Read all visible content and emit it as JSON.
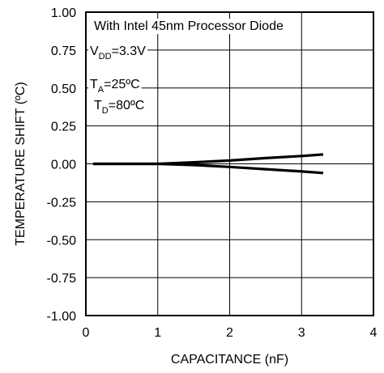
{
  "chart_data": {
    "type": "line",
    "title": "",
    "xlabel": "CAPACITANCE (nF)",
    "ylabel": "TEMPERATURE SHIFT (ºC)",
    "xlim": [
      0,
      4
    ],
    "ylim": [
      -1.0,
      1.0
    ],
    "x_ticks": [
      "0",
      "1",
      "2",
      "3",
      "4"
    ],
    "x_tick_values": [
      0,
      1,
      2,
      3,
      4
    ],
    "y_ticks": [
      "1.00",
      "0.75",
      "0.50",
      "0.25",
      "0.00",
      "-0.25",
      "-0.50",
      "-0.75",
      "-1.00"
    ],
    "y_tick_values": [
      1.0,
      0.75,
      0.5,
      0.25,
      0.0,
      -0.25,
      -0.5,
      -0.75,
      -1.0
    ],
    "grid": true,
    "series": [
      {
        "x": [
          0.1,
          1.0,
          1.5,
          2.0,
          2.5,
          3.0,
          3.3
        ],
        "values": [
          0.0,
          0.0,
          0.01,
          0.022,
          0.038,
          0.052,
          0.062
        ]
      },
      {
        "x": [
          0.1,
          1.0,
          1.5,
          2.0,
          2.5,
          3.0,
          3.3
        ],
        "values": [
          0.0,
          0.0,
          -0.008,
          -0.02,
          -0.035,
          -0.05,
          -0.06
        ]
      }
    ],
    "annotations": [
      {
        "parts": [
          {
            "text": "With Intel 45nm Processor Diode",
            "sub": false
          }
        ]
      },
      {
        "parts": [
          {
            "text": "V",
            "sub": false
          },
          {
            "text": "DD",
            "sub": true
          },
          {
            "text": "=3.3V",
            "sub": false
          }
        ]
      },
      {
        "parts": [
          {
            "text": "T",
            "sub": false
          },
          {
            "text": "A",
            "sub": true
          },
          {
            "text": "=25ºC",
            "sub": false
          }
        ]
      },
      {
        "parts": [
          {
            "text": "T",
            "sub": false
          },
          {
            "text": "D",
            "sub": true
          },
          {
            "text": "=80ºC",
            "sub": false
          }
        ]
      }
    ]
  }
}
